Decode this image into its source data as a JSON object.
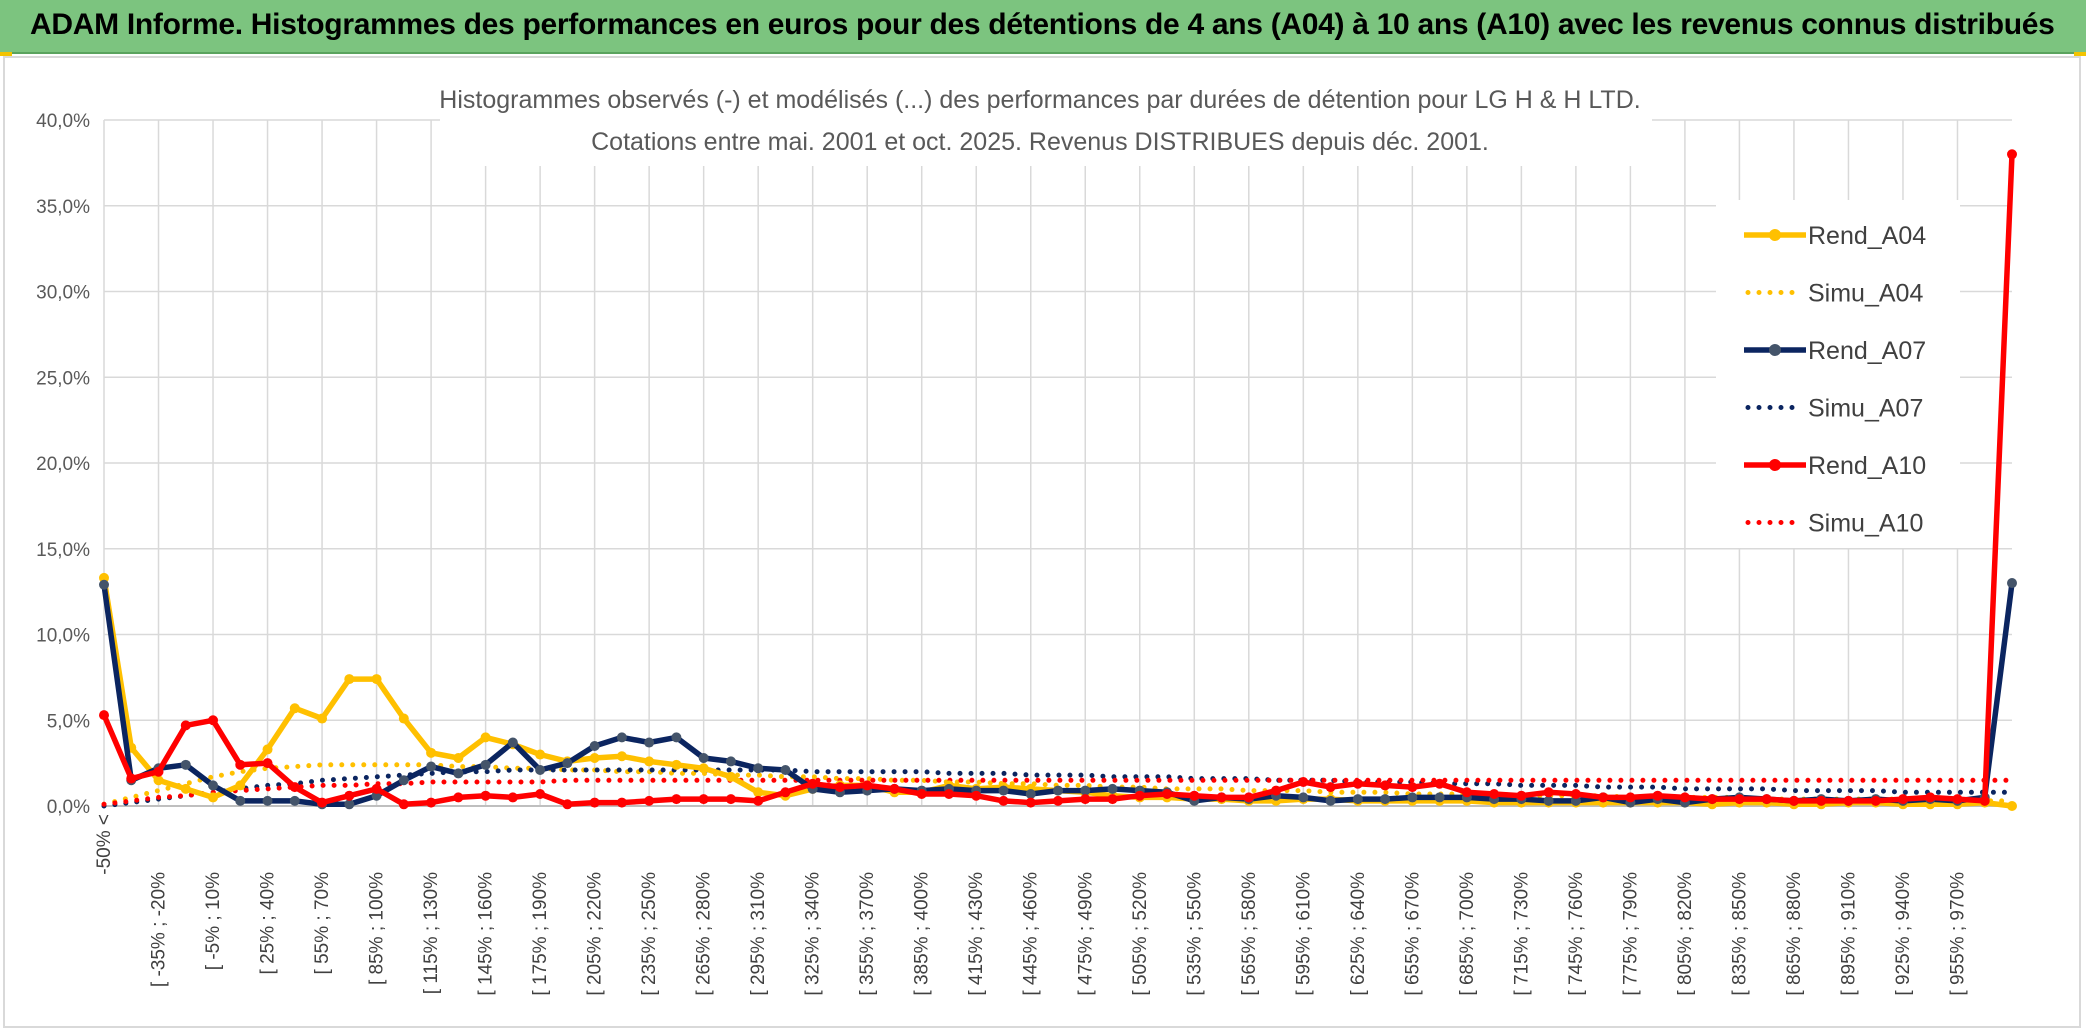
{
  "header": {
    "title": "ADAM Informe. Histogrammes des performances en euros pour des détentions de 4 ans (A04) à 10 ans (A10) avec les revenus connus distribués"
  },
  "colors": {
    "banner": "#7cc47f",
    "A04": "#ffc000",
    "A07": "#0b2560",
    "A10": "#ff0000",
    "grid": "#d9d9d9"
  },
  "chart_data": {
    "type": "line",
    "title": "Histogrammes observés (-) et modélisés (...) des performances par durées de détention pour LG H & H LTD.",
    "subtitle": "Cotations entre mai. 2001 et oct. 2025. Revenus DISTRIBUES depuis déc. 2001.",
    "ylim": [
      0,
      40
    ],
    "y_ticks": [
      "0,0%",
      "5,0%",
      "10,0%",
      "15,0%",
      "20,0%",
      "25,0%",
      "30,0%",
      "35,0%",
      "40,0%"
    ],
    "grid": true,
    "legend_position": "right",
    "x_tick_labels": [
      "-50% <",
      "[ -35% ; -20%",
      "[ -5% ; 10%",
      "[ 25% ; 40%",
      "[ 55% ; 70%",
      "[ 85% ; 100%",
      "[ 115% ; 130%",
      "[ 145% ; 160%",
      "[ 175% ; 190%",
      "[ 205% ; 220%",
      "[ 235% ; 250%",
      "[ 265% ; 280%",
      "[ 295% ; 310%",
      "[ 325% ; 340%",
      "[ 355% ; 370%",
      "[ 385% ; 400%",
      "[ 415% ; 430%",
      "[ 445% ; 460%",
      "[ 475% ; 490%",
      "[ 505% ; 520%",
      "[ 535% ; 550%",
      "[ 565% ; 580%",
      "[ 595% ; 610%",
      "[ 625% ; 640%",
      "[ 655% ; 670%",
      "[ 685% ; 700%",
      "[ 715% ; 730%",
      "[ 745% ; 760%",
      "[ 775% ; 790%",
      "[ 805% ; 820%",
      "[ 835% ; 850%",
      "[ 865% ; 880%",
      "[ 895% ; 910%",
      "[ 925% ; 940%",
      "[ 955% ; 970%"
    ],
    "series": [
      {
        "name": "Rend_A04",
        "style": "solid",
        "color": "#ffc000",
        "values": [
          13.3,
          3.4,
          1.5,
          1.0,
          0.5,
          1.2,
          3.3,
          5.7,
          5.1,
          7.4,
          7.4,
          5.1,
          3.1,
          2.8,
          4.0,
          3.6,
          3.0,
          2.6,
          2.8,
          2.9,
          2.6,
          2.4,
          2.2,
          1.7,
          0.8,
          0.6,
          1.0,
          1.2,
          1.2,
          0.8,
          0.8,
          1.2,
          1.0,
          1.1,
          1.0,
          0.9,
          0.8,
          0.6,
          0.5,
          0.5,
          0.4,
          0.4,
          0.3,
          0.3,
          0.4,
          0.4,
          0.3,
          0.3,
          0.3,
          0.3,
          0.3,
          0.2,
          0.2,
          0.2,
          0.2,
          0.2,
          0.2,
          0.2,
          0.2,
          0.1,
          0.2,
          0.2,
          0.1,
          0.1,
          0.2,
          0.2,
          0.1,
          0.1,
          0.1,
          0.2,
          0.0
        ]
      },
      {
        "name": "Simu_A04",
        "style": "dotted",
        "color": "#ffc000",
        "values": [
          0.1,
          0.5,
          0.9,
          1.3,
          1.7,
          2.0,
          2.2,
          2.3,
          2.4,
          2.4,
          2.4,
          2.4,
          2.4,
          2.3,
          2.3,
          2.2,
          2.2,
          2.1,
          2.1,
          2.0,
          2.0,
          1.9,
          1.9,
          1.8,
          1.8,
          1.7,
          1.7,
          1.6,
          1.6,
          1.5,
          1.5,
          1.4,
          1.4,
          1.3,
          1.3,
          1.2,
          1.2,
          1.1,
          1.1,
          1.0,
          1.0,
          1.0,
          0.9,
          0.9,
          0.9,
          0.8,
          0.8,
          0.8,
          0.7,
          0.7,
          0.7,
          0.7,
          0.6,
          0.6,
          0.6,
          0.6,
          0.5,
          0.5,
          0.5,
          0.5,
          0.5,
          0.4,
          0.4,
          0.4,
          0.4,
          0.4,
          0.4,
          0.3,
          0.3,
          0.3,
          0.3
        ]
      },
      {
        "name": "Rend_A07",
        "style": "solid",
        "color": "#0b2560",
        "values": [
          12.9,
          1.5,
          2.2,
          2.4,
          1.2,
          0.3,
          0.3,
          0.3,
          0.1,
          0.1,
          0.6,
          1.5,
          2.3,
          1.9,
          2.4,
          3.7,
          2.1,
          2.5,
          3.5,
          4.0,
          3.7,
          4.0,
          2.8,
          2.6,
          2.2,
          2.1,
          1.0,
          0.8,
          0.9,
          1.0,
          0.9,
          1.0,
          0.9,
          0.9,
          0.7,
          0.9,
          0.9,
          1.0,
          0.9,
          0.8,
          0.3,
          0.5,
          0.4,
          0.6,
          0.5,
          0.3,
          0.4,
          0.4,
          0.5,
          0.5,
          0.5,
          0.4,
          0.4,
          0.3,
          0.3,
          0.5,
          0.2,
          0.4,
          0.2,
          0.4,
          0.5,
          0.4,
          0.3,
          0.4,
          0.3,
          0.4,
          0.3,
          0.4,
          0.3,
          0.5,
          13.0
        ]
      },
      {
        "name": "Simu_A07",
        "style": "dotted",
        "color": "#0b2560",
        "values": [
          0.0,
          0.2,
          0.4,
          0.6,
          0.8,
          1.0,
          1.2,
          1.3,
          1.5,
          1.6,
          1.7,
          1.8,
          1.9,
          2.0,
          2.0,
          2.1,
          2.1,
          2.1,
          2.1,
          2.1,
          2.1,
          2.1,
          2.1,
          2.1,
          2.1,
          2.1,
          2.0,
          2.0,
          2.0,
          2.0,
          2.0,
          1.9,
          1.9,
          1.9,
          1.8,
          1.8,
          1.8,
          1.7,
          1.7,
          1.7,
          1.6,
          1.6,
          1.6,
          1.5,
          1.5,
          1.5,
          1.4,
          1.4,
          1.4,
          1.3,
          1.3,
          1.3,
          1.2,
          1.2,
          1.2,
          1.1,
          1.1,
          1.1,
          1.0,
          1.0,
          1.0,
          1.0,
          0.9,
          0.9,
          0.9,
          0.9,
          0.8,
          0.8,
          0.8,
          0.8,
          0.8
        ]
      },
      {
        "name": "Rend_A10",
        "style": "solid",
        "color": "#ff0000",
        "values": [
          5.3,
          1.6,
          2.0,
          4.7,
          5.0,
          2.4,
          2.5,
          1.1,
          0.2,
          0.6,
          1.0,
          0.1,
          0.2,
          0.5,
          0.6,
          0.5,
          0.7,
          0.1,
          0.2,
          0.2,
          0.3,
          0.4,
          0.4,
          0.4,
          0.3,
          0.8,
          1.3,
          1.1,
          1.2,
          1.0,
          0.7,
          0.7,
          0.6,
          0.3,
          0.2,
          0.3,
          0.4,
          0.4,
          0.6,
          0.7,
          0.6,
          0.5,
          0.5,
          0.9,
          1.4,
          1.1,
          1.3,
          1.2,
          1.1,
          1.3,
          0.8,
          0.7,
          0.6,
          0.8,
          0.7,
          0.5,
          0.5,
          0.6,
          0.5,
          0.4,
          0.4,
          0.4,
          0.3,
          0.3,
          0.3,
          0.3,
          0.4,
          0.5,
          0.4,
          0.3,
          38.0
        ]
      },
      {
        "name": "Simu_A10",
        "style": "dotted",
        "color": "#ff0000",
        "values": [
          0.1,
          0.3,
          0.5,
          0.6,
          0.8,
          0.9,
          1.0,
          1.1,
          1.2,
          1.2,
          1.3,
          1.3,
          1.4,
          1.4,
          1.4,
          1.4,
          1.4,
          1.5,
          1.5,
          1.5,
          1.5,
          1.5,
          1.5,
          1.5,
          1.5,
          1.5,
          1.5,
          1.5,
          1.5,
          1.5,
          1.5,
          1.5,
          1.5,
          1.5,
          1.5,
          1.5,
          1.5,
          1.5,
          1.5,
          1.5,
          1.5,
          1.5,
          1.5,
          1.5,
          1.5,
          1.5,
          1.5,
          1.5,
          1.5,
          1.5,
          1.5,
          1.5,
          1.5,
          1.5,
          1.5,
          1.5,
          1.5,
          1.5,
          1.5,
          1.5,
          1.5,
          1.5,
          1.5,
          1.5,
          1.5,
          1.5,
          1.5,
          1.5,
          1.5,
          1.5,
          1.5
        ]
      }
    ]
  }
}
